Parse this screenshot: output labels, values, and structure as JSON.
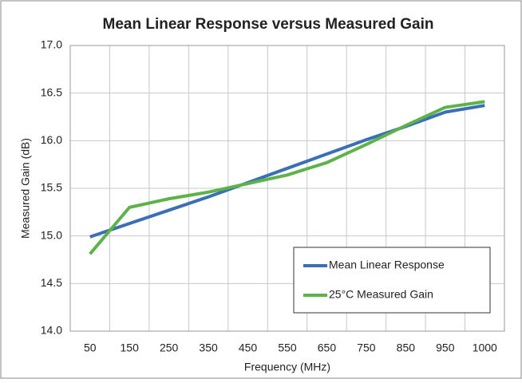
{
  "chart_data": {
    "type": "line",
    "title": "Mean Linear Response versus Measured Gain",
    "x_label": "Frequency (MHz)",
    "y_label": "Measured Gain (dB)",
    "categories": [
      "50",
      "150",
      "250",
      "350",
      "450",
      "550",
      "650",
      "750",
      "850",
      "950",
      "1000"
    ],
    "series": [
      {
        "name": "Mean Linear Response",
        "color": "#3a6fb8",
        "values": [
          14.99,
          15.13,
          15.27,
          15.41,
          15.56,
          15.71,
          15.86,
          16.01,
          16.15,
          16.3,
          16.37
        ]
      },
      {
        "name": "25°C Measured Gain",
        "color": "#5db348",
        "values": [
          14.81,
          15.3,
          15.39,
          15.46,
          15.55,
          15.64,
          15.77,
          15.96,
          16.16,
          16.35,
          16.41
        ]
      }
    ],
    "ylim": [
      14,
      17
    ],
    "yticks": [
      {
        "value": 14,
        "label": "14.0"
      },
      14.5,
      {
        "value": 15,
        "label": "15.0"
      },
      15.5,
      {
        "value": 16,
        "label": "16.0"
      },
      16.5,
      {
        "value": 17,
        "label": "17.0"
      }
    ],
    "grid": true,
    "legend": "lower right"
  }
}
